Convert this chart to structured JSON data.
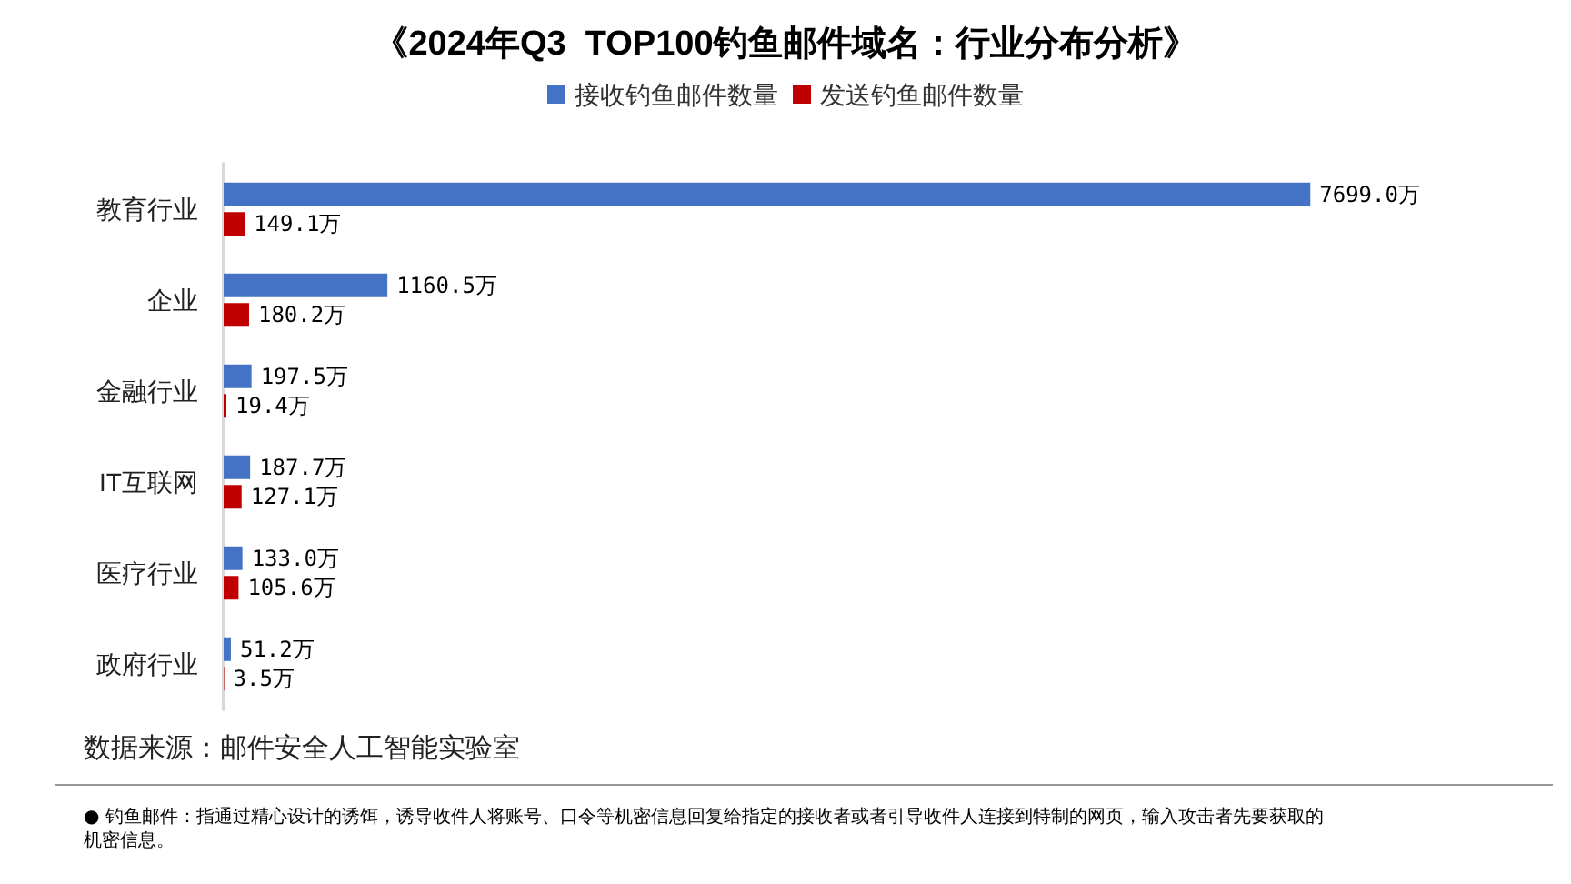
{
  "chart_data": {
    "type": "bar",
    "orientation": "horizontal",
    "title": "《2024年Q3  TOP100钓鱼邮件域名：行业分布分析》",
    "categories": [
      "教育行业",
      "企业",
      "金融行业",
      "IT互联网",
      "医疗行业",
      "政府行业"
    ],
    "series": [
      {
        "name": "接收钓鱼邮件数量",
        "color": "#4472c4",
        "values": [
          7699.0,
          1160.5,
          197.5,
          187.7,
          133.0,
          51.2
        ],
        "value_labels": [
          "7699.0万",
          "1160.5万",
          "197.5万",
          "187.7万",
          "133.0万",
          "51.2万"
        ]
      },
      {
        "name": "发送钓鱼邮件数量",
        "color": "#c00000",
        "values": [
          149.1,
          180.2,
          19.4,
          127.1,
          105.6,
          3.5
        ],
        "value_labels": [
          "149.1万",
          "180.2万",
          "19.4万",
          "127.1万",
          "105.6万",
          "3.5万"
        ]
      }
    ],
    "legend": "top",
    "tick_labels": "y",
    "annotations": [
      "数据来源：邮件安全人工智能实验室",
      "● 钓鱼邮件：指通过精心设计的诱饵，诱导收件人将账号、口令等机密信息回复给指定的接收者或者引导收件人连接到特制的网页，输入攻击者先要获取的机密信息。"
    ]
  }
}
